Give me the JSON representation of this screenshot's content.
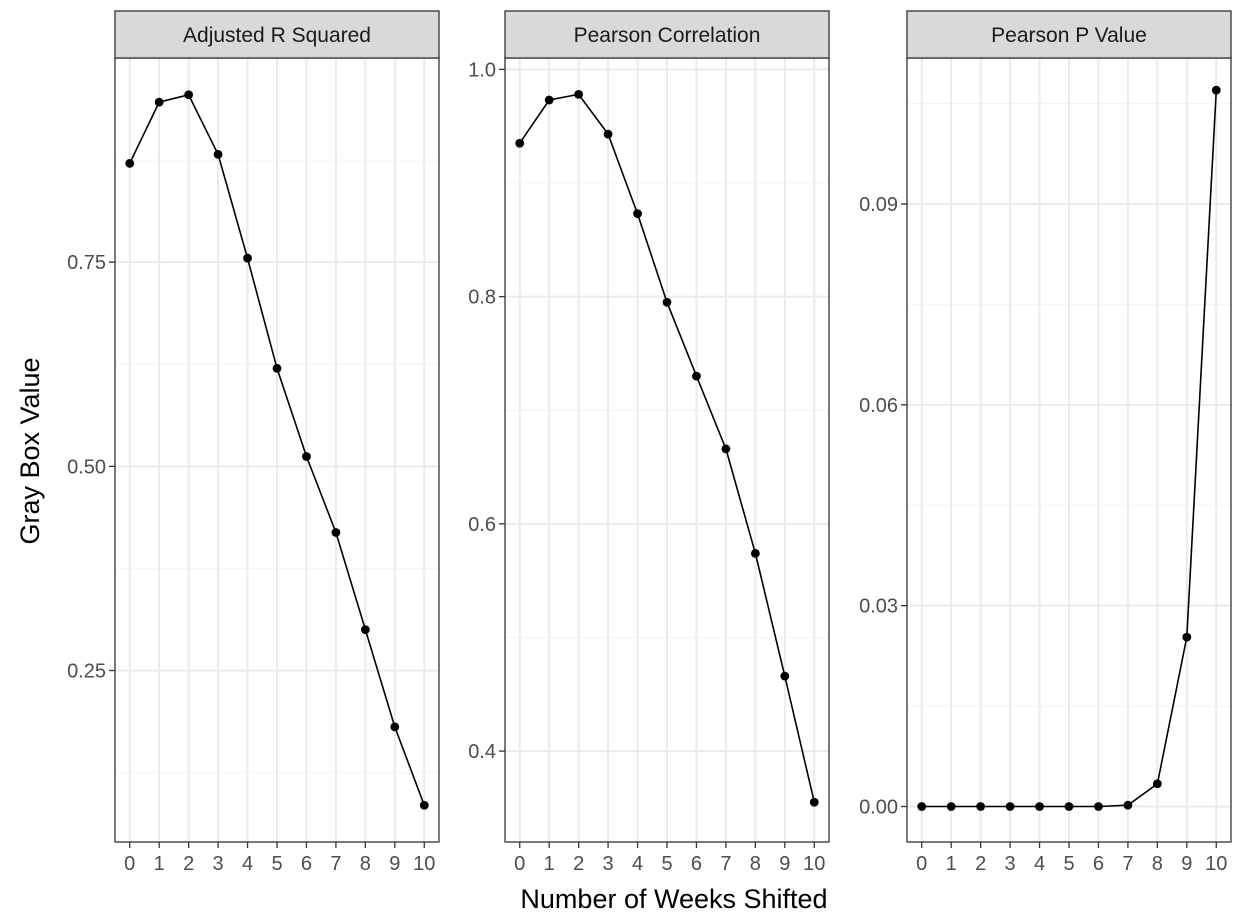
{
  "chart_data": {
    "type": "line",
    "xlabel": "Number of Weeks Shifted",
    "ylabel": "Gray Box Value",
    "grid": true,
    "x": [
      0,
      1,
      2,
      3,
      4,
      5,
      6,
      7,
      8,
      9,
      10
    ],
    "x_ticks": [
      "0",
      "1",
      "2",
      "3",
      "4",
      "5",
      "6",
      "7",
      "8",
      "9",
      "10"
    ],
    "xlim": [
      -0.5,
      10.5
    ],
    "panels": [
      {
        "title": "Adjusted R Squared",
        "values": [
          0.871,
          0.946,
          0.955,
          0.882,
          0.755,
          0.62,
          0.512,
          0.419,
          0.3,
          0.181,
          0.085
        ],
        "ylim": [
          0.04,
          1.0
        ],
        "y_ticks": [
          0.25,
          0.5,
          0.75
        ],
        "y_tick_labels": [
          "0.25",
          "0.50",
          "0.75"
        ]
      },
      {
        "title": "Pearson Correlation",
        "values": [
          0.935,
          0.973,
          0.978,
          0.943,
          0.873,
          0.795,
          0.73,
          0.666,
          0.574,
          0.466,
          0.355
        ],
        "ylim": [
          0.32,
          1.01
        ],
        "y_ticks": [
          0.4,
          0.6,
          0.8,
          1.0
        ],
        "y_tick_labels": [
          "0.4",
          "0.6",
          "0.8",
          "1.0"
        ]
      },
      {
        "title": "Pearson P Value",
        "values": [
          0.0,
          0.0,
          0.0,
          0.0,
          0.0,
          0.0,
          0.0,
          0.0002,
          0.0034,
          0.0253,
          0.107
        ],
        "ylim": [
          -0.0053,
          0.1118
        ],
        "y_ticks": [
          0.0,
          0.03,
          0.06,
          0.09
        ],
        "y_tick_labels": [
          "0.00",
          "0.03",
          "0.06",
          "0.09"
        ]
      }
    ],
    "colors": {
      "line": "#000000",
      "strip_fill": "#d9d9d9",
      "panel_border": "#333333",
      "grid_major": "#ebebeb",
      "grid_minor": "#f4f4f4",
      "tick_text": "#4d4d4d"
    }
  }
}
